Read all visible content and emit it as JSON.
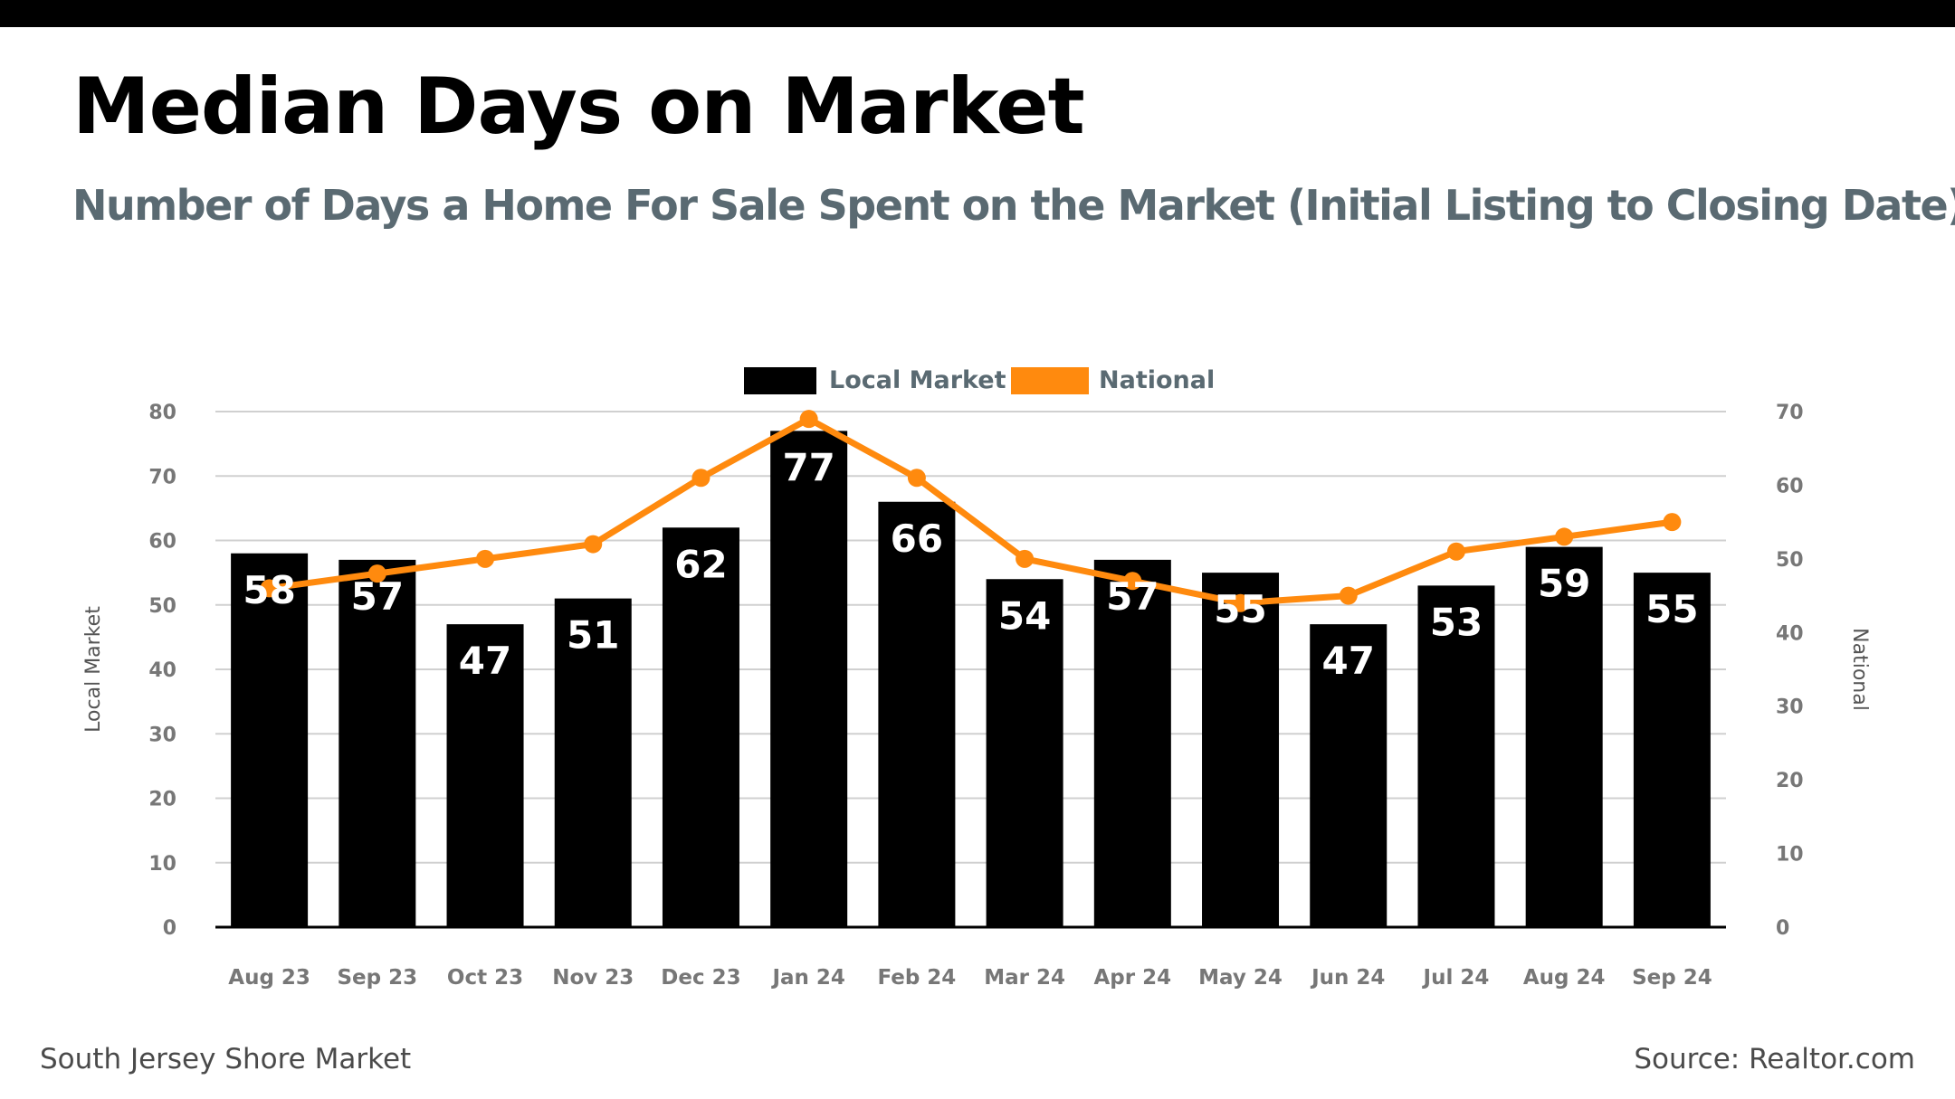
{
  "header": {
    "title": "Median Days on Market",
    "subtitle": "Number of Days a Home For Sale Spent on the Market (Initial Listing to Closing Date)"
  },
  "footer": {
    "left": "South Jersey Shore Market",
    "right": "Source: Realtor.com"
  },
  "colors": {
    "local": "#000000",
    "national": "#ff8a0e",
    "grid": "#d0d0d0",
    "axis_text": "#777777",
    "legend_text": "#5a6a72"
  },
  "chart_data": {
    "type": "bar",
    "categories": [
      "Aug 23",
      "Sep 23",
      "Oct 23",
      "Nov 23",
      "Dec 23",
      "Jan 24",
      "Feb 24",
      "Mar 24",
      "Apr 24",
      "May 24",
      "Jun 24",
      "Jul 24",
      "Aug 24",
      "Sep 24"
    ],
    "series": [
      {
        "name": "Local Market",
        "type": "bar",
        "axis": "left",
        "values": [
          58,
          57,
          47,
          51,
          62,
          77,
          66,
          54,
          57,
          55,
          47,
          53,
          59,
          55
        ]
      },
      {
        "name": "National",
        "type": "line",
        "axis": "right",
        "values": [
          46,
          48,
          50,
          52,
          61,
          69,
          61,
          50,
          47,
          44,
          45,
          51,
          53,
          55
        ]
      }
    ],
    "ylabel": "Local Market",
    "y2label": "National",
    "ylim": [
      0,
      80
    ],
    "y2lim": [
      0,
      70
    ],
    "yticks": [
      0,
      10,
      20,
      30,
      40,
      50,
      60,
      70,
      80
    ],
    "y2ticks": [
      0,
      10,
      20,
      30,
      40,
      50,
      60,
      70
    ],
    "grid": true,
    "legend": "top-center"
  }
}
